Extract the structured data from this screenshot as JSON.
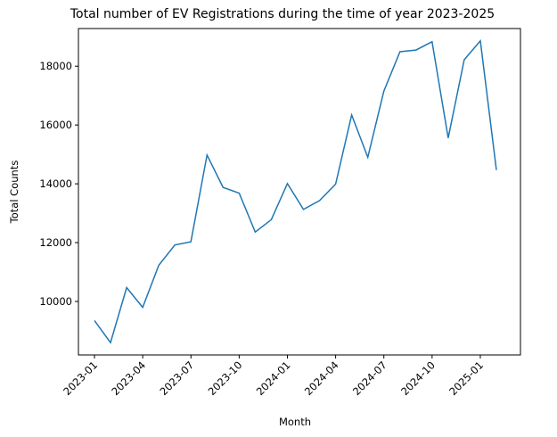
{
  "chart_data": {
    "type": "line",
    "title": "Total number of EV Registrations during the time of year 2023-2025",
    "xlabel": "Month",
    "ylabel": "Total Counts",
    "x": [
      "2023-01",
      "2023-02",
      "2023-03",
      "2023-04",
      "2023-05",
      "2023-06",
      "2023-07",
      "2023-08",
      "2023-09",
      "2023-10",
      "2023-11",
      "2023-12",
      "2024-01",
      "2024-02",
      "2024-03",
      "2024-04",
      "2024-05",
      "2024-06",
      "2024-07",
      "2024-08",
      "2024-09",
      "2024-10",
      "2024-11",
      "2024-12",
      "2025-01",
      "2025-02"
    ],
    "series": [
      {
        "values": [
          9350,
          8600,
          10470,
          9800,
          11230,
          11920,
          12030,
          14980,
          13880,
          13680,
          12360,
          12780,
          14010,
          13130,
          13430,
          13990,
          16340,
          14900,
          17150,
          18490,
          18550,
          18830,
          15560,
          18220,
          18860,
          14470
        ]
      }
    ],
    "x_ticks": [
      "2023-01",
      "2023-04",
      "2023-07",
      "2023-10",
      "2024-01",
      "2024-04",
      "2024-07",
      "2024-10",
      "2025-01"
    ],
    "y_ticks": [
      10000,
      12000,
      14000,
      16000,
      18000
    ],
    "y_tick_labels": [
      "10000",
      "12000",
      "14000",
      "16000",
      "18000"
    ],
    "ylim": [
      8180,
      19280
    ],
    "grid": false,
    "legend": "none",
    "colors": {
      "line": "#1f77b4",
      "axes": "#000000",
      "background": "#ffffff"
    }
  }
}
